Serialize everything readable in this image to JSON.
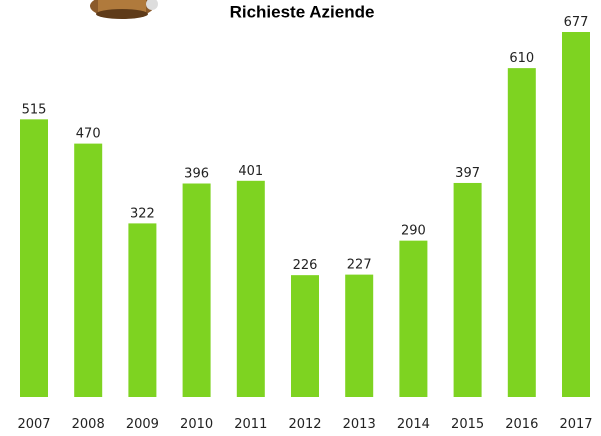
{
  "chart_data": {
    "type": "bar",
    "title": "Richieste Aziende",
    "categories": [
      "2007",
      "2008",
      "2009",
      "2010",
      "2011",
      "2012",
      "2013",
      "2014",
      "2015",
      "2016",
      "2017"
    ],
    "values": [
      515,
      470,
      322,
      396,
      401,
      226,
      227,
      290,
      397,
      610,
      677
    ],
    "color": "#7ed321"
  }
}
